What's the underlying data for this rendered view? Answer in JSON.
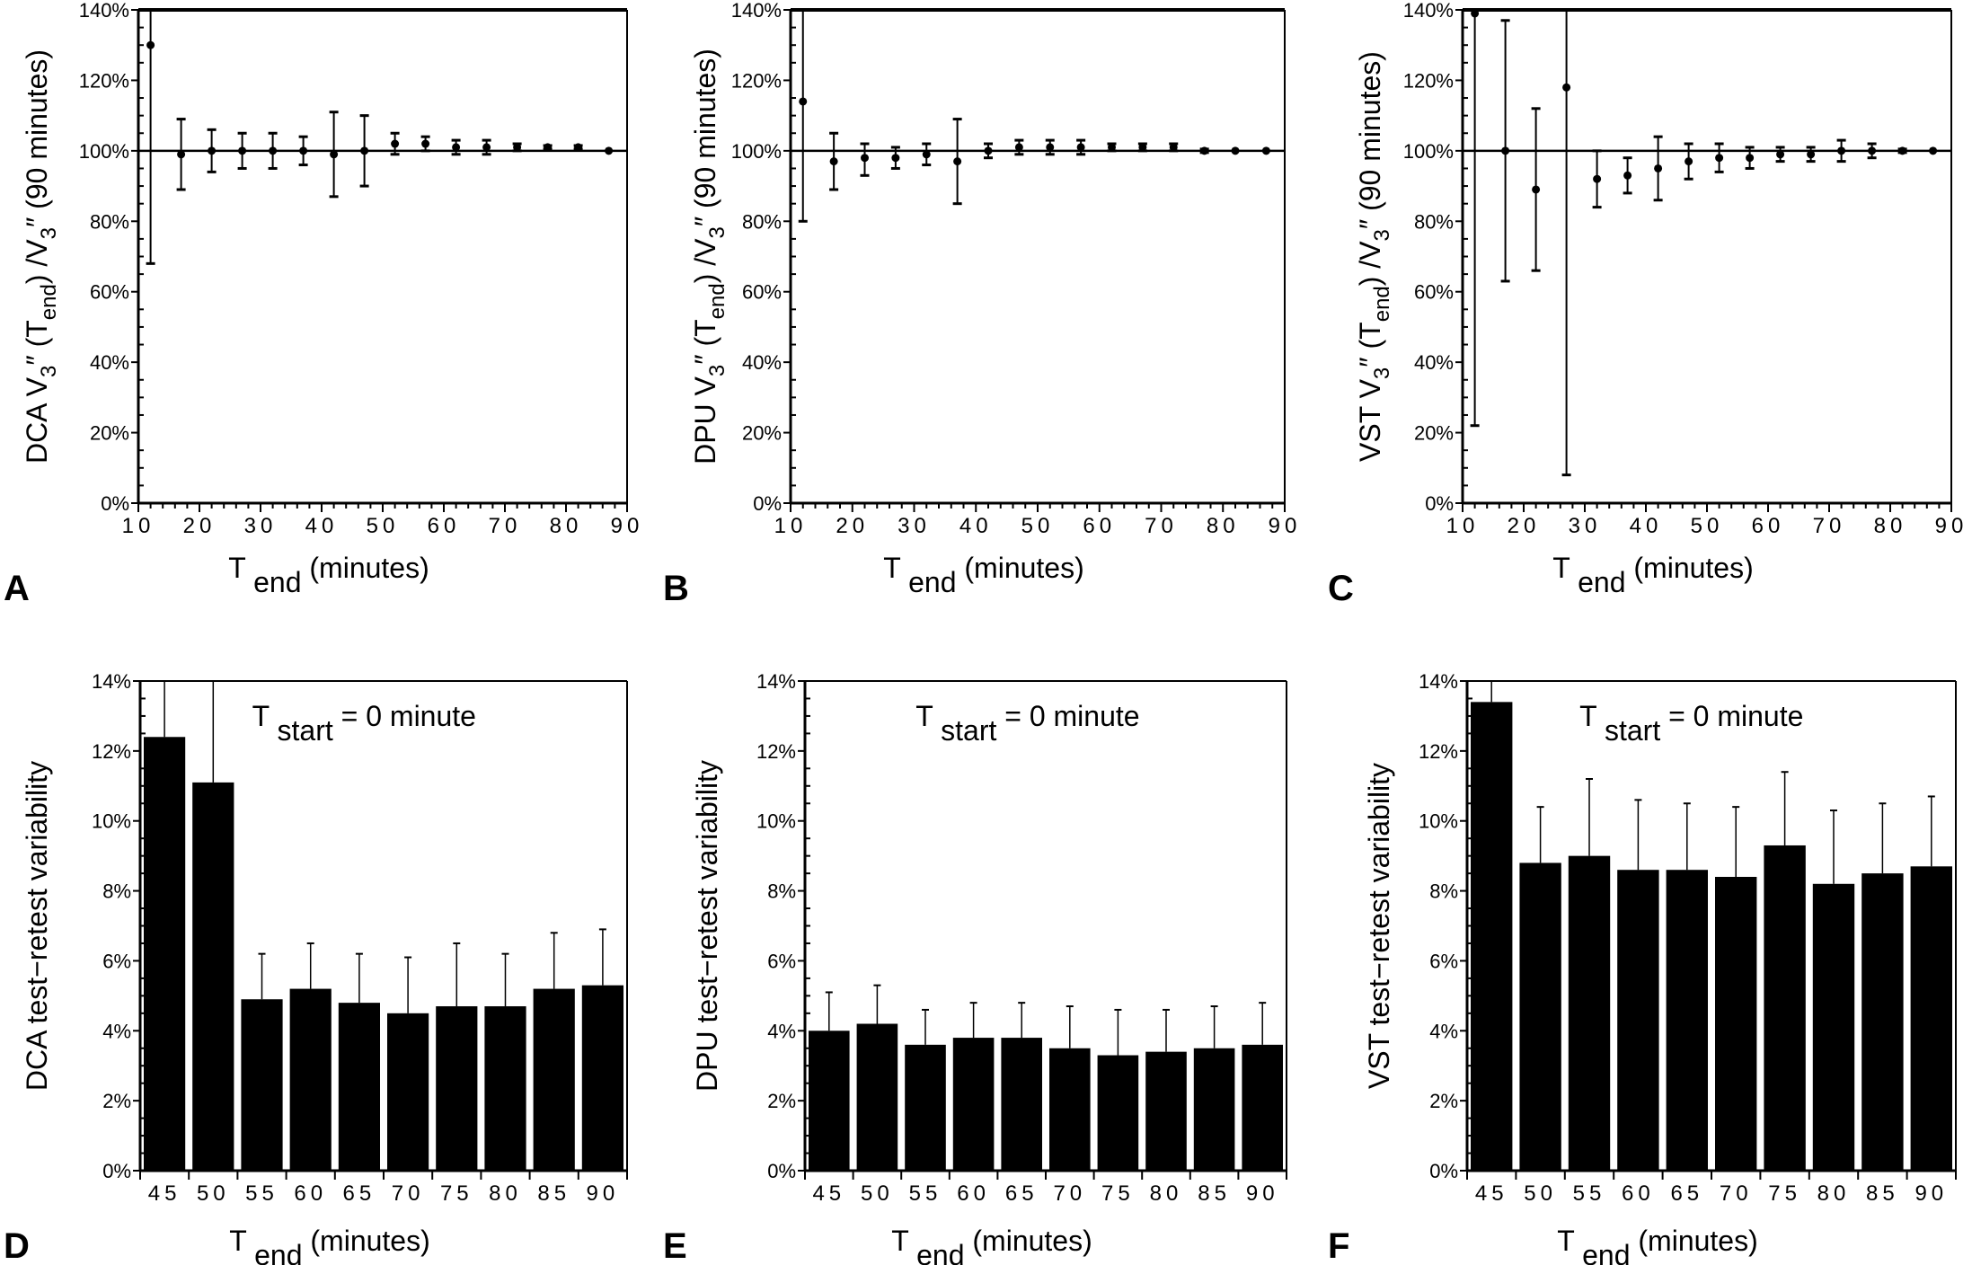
{
  "figure": {
    "panels": [
      "A",
      "B",
      "C",
      "D",
      "E",
      "F"
    ]
  },
  "chart_data": [
    {
      "panel": "A",
      "type": "scatter",
      "title": "",
      "ylabel": "DCA V3″ (T end) /V3″ (90 minutes)",
      "ylabel_parts": {
        "prefix": "DCA V",
        "sub1": "3",
        "mid1": "″ (T",
        "end": "end",
        "mid2": ") /V",
        "sub2": "3",
        "suffix": "″ (90 minutes)"
      },
      "xlabel": "T end (minutes)",
      "xlabel_parts": {
        "main": "T",
        "sub": "end",
        "unit": "(minutes)"
      },
      "xlim": [
        10,
        90
      ],
      "ylim": [
        0,
        140
      ],
      "xticks": [
        "10",
        "20",
        "30",
        "40",
        "50",
        "60",
        "70",
        "80",
        "90"
      ],
      "yticks": [
        "0%",
        "20%",
        "40%",
        "60%",
        "80%",
        "100%",
        "120%",
        "140%"
      ],
      "reference_line": 100,
      "grid": false,
      "points": [
        {
          "x": 12,
          "y": 130,
          "lo": 68,
          "hi": 140
        },
        {
          "x": 17,
          "y": 99,
          "lo": 89,
          "hi": 109
        },
        {
          "x": 22,
          "y": 100,
          "lo": 94,
          "hi": 106
        },
        {
          "x": 27,
          "y": 100,
          "lo": 95,
          "hi": 105
        },
        {
          "x": 32,
          "y": 100,
          "lo": 95,
          "hi": 105
        },
        {
          "x": 37,
          "y": 100,
          "lo": 96,
          "hi": 104
        },
        {
          "x": 42,
          "y": 99,
          "lo": 87,
          "hi": 111
        },
        {
          "x": 47,
          "y": 100,
          "lo": 90,
          "hi": 110
        },
        {
          "x": 52,
          "y": 102,
          "lo": 99,
          "hi": 105
        },
        {
          "x": 57,
          "y": 102,
          "lo": 100,
          "hi": 104
        },
        {
          "x": 62,
          "y": 101,
          "lo": 99,
          "hi": 103
        },
        {
          "x": 67,
          "y": 101,
          "lo": 99,
          "hi": 103
        },
        {
          "x": 72,
          "y": 101,
          "lo": 100,
          "hi": 102
        },
        {
          "x": 77,
          "y": 101,
          "lo": 100.5,
          "hi": 101.5
        },
        {
          "x": 82,
          "y": 101,
          "lo": 100.5,
          "hi": 101.5
        },
        {
          "x": 87,
          "y": 100,
          "lo": 100,
          "hi": 100
        }
      ]
    },
    {
      "panel": "B",
      "type": "scatter",
      "title": "",
      "ylabel": "DPU V3″ (T end) /V3″ (90 minutes)",
      "ylabel_parts": {
        "prefix": "DPU V",
        "sub1": "3",
        "mid1": "″ (T",
        "end": "end",
        "mid2": ") /V",
        "sub2": "3",
        "suffix": "″ (90 minutes)"
      },
      "xlabel": "T end (minutes)",
      "xlabel_parts": {
        "main": "T",
        "sub": "end",
        "unit": "(minutes)"
      },
      "xlim": [
        10,
        90
      ],
      "ylim": [
        0,
        140
      ],
      "xticks": [
        "10",
        "20",
        "30",
        "40",
        "50",
        "60",
        "70",
        "80",
        "90"
      ],
      "yticks": [
        "0%",
        "20%",
        "40%",
        "60%",
        "80%",
        "100%",
        "120%",
        "140%"
      ],
      "reference_line": 100,
      "grid": false,
      "points": [
        {
          "x": 12,
          "y": 114,
          "lo": 80,
          "hi": 140
        },
        {
          "x": 17,
          "y": 97,
          "lo": 89,
          "hi": 105
        },
        {
          "x": 22,
          "y": 98,
          "lo": 93,
          "hi": 102
        },
        {
          "x": 27,
          "y": 98,
          "lo": 95,
          "hi": 101
        },
        {
          "x": 32,
          "y": 99,
          "lo": 96,
          "hi": 102
        },
        {
          "x": 37,
          "y": 97,
          "lo": 85,
          "hi": 109
        },
        {
          "x": 42,
          "y": 100,
          "lo": 98,
          "hi": 102
        },
        {
          "x": 47,
          "y": 101,
          "lo": 99,
          "hi": 103
        },
        {
          "x": 52,
          "y": 101,
          "lo": 99,
          "hi": 103
        },
        {
          "x": 57,
          "y": 101,
          "lo": 99,
          "hi": 103
        },
        {
          "x": 62,
          "y": 101,
          "lo": 100,
          "hi": 102
        },
        {
          "x": 67,
          "y": 101,
          "lo": 100,
          "hi": 102
        },
        {
          "x": 72,
          "y": 101,
          "lo": 100,
          "hi": 102
        },
        {
          "x": 77,
          "y": 100,
          "lo": 99.5,
          "hi": 100.5
        },
        {
          "x": 82,
          "y": 100,
          "lo": 100,
          "hi": 100
        },
        {
          "x": 87,
          "y": 100,
          "lo": 100,
          "hi": 100
        }
      ]
    },
    {
      "panel": "C",
      "type": "scatter",
      "title": "",
      "ylabel": "VST V3″ (T end) /V3″ (90 minutes)",
      "ylabel_parts": {
        "prefix": "VST V",
        "sub1": "3",
        "mid1": "″ (T",
        "end": "end",
        "mid2": ") /V",
        "sub2": "3",
        "suffix": "″ (90 minutes)"
      },
      "xlabel": "T end (minutes)",
      "xlabel_parts": {
        "main": "T",
        "sub": "end",
        "unit": "(minutes)"
      },
      "xlim": [
        10,
        90
      ],
      "ylim": [
        0,
        140
      ],
      "xticks": [
        "10",
        "20",
        "30",
        "40",
        "50",
        "60",
        "70",
        "80",
        "90"
      ],
      "yticks": [
        "0%",
        "20%",
        "40%",
        "60%",
        "80%",
        "100%",
        "120%",
        "140%"
      ],
      "reference_line": 100,
      "grid": false,
      "points": [
        {
          "x": 12,
          "y": 139,
          "lo": 22,
          "hi": 140
        },
        {
          "x": 17,
          "y": 100,
          "lo": 63,
          "hi": 137
        },
        {
          "x": 22,
          "y": 89,
          "lo": 66,
          "hi": 112
        },
        {
          "x": 27,
          "y": 118,
          "lo": 8,
          "hi": 140
        },
        {
          "x": 32,
          "y": 92,
          "lo": 84,
          "hi": 100
        },
        {
          "x": 37,
          "y": 93,
          "lo": 88,
          "hi": 98
        },
        {
          "x": 42,
          "y": 95,
          "lo": 86,
          "hi": 104
        },
        {
          "x": 47,
          "y": 97,
          "lo": 92,
          "hi": 102
        },
        {
          "x": 52,
          "y": 98,
          "lo": 94,
          "hi": 102
        },
        {
          "x": 57,
          "y": 98,
          "lo": 95,
          "hi": 101
        },
        {
          "x": 62,
          "y": 99,
          "lo": 97,
          "hi": 101
        },
        {
          "x": 67,
          "y": 99,
          "lo": 97,
          "hi": 101
        },
        {
          "x": 72,
          "y": 100,
          "lo": 97,
          "hi": 103
        },
        {
          "x": 77,
          "y": 100,
          "lo": 98,
          "hi": 102
        },
        {
          "x": 82,
          "y": 100,
          "lo": 99.5,
          "hi": 100.5
        },
        {
          "x": 87,
          "y": 100,
          "lo": 100,
          "hi": 100
        }
      ]
    },
    {
      "panel": "D",
      "type": "bar",
      "title": "",
      "annotation": {
        "main": "T",
        "sub": "start",
        "rest": "= 0 minute"
      },
      "ylabel": "DCA test−retest variability",
      "xlabel": "T end (minutes)",
      "xlabel_parts": {
        "main": "T",
        "sub": "end",
        "unit": "(minutes)"
      },
      "ylim": [
        0,
        14
      ],
      "yticks": [
        "0%",
        "2%",
        "4%",
        "6%",
        "8%",
        "10%",
        "12%",
        "14%"
      ],
      "categories": [
        "45",
        "50",
        "55",
        "60",
        "65",
        "70",
        "75",
        "80",
        "85",
        "90"
      ],
      "values": [
        12.4,
        11.1,
        4.9,
        5.2,
        4.8,
        4.5,
        4.7,
        4.7,
        5.2,
        5.3
      ],
      "error_upper": [
        14,
        14,
        6.2,
        6.5,
        6.2,
        6.1,
        6.5,
        6.2,
        6.8,
        6.9
      ],
      "grid": false
    },
    {
      "panel": "E",
      "type": "bar",
      "title": "",
      "annotation": {
        "main": "T",
        "sub": "start",
        "rest": "= 0 minute"
      },
      "ylabel": "DPU test−retest variability",
      "xlabel": "T end (minutes)",
      "xlabel_parts": {
        "main": "T",
        "sub": "end",
        "unit": "(minutes)"
      },
      "ylim": [
        0,
        14
      ],
      "yticks": [
        "0%",
        "2%",
        "4%",
        "6%",
        "8%",
        "10%",
        "12%",
        "14%"
      ],
      "categories": [
        "45",
        "50",
        "55",
        "60",
        "65",
        "70",
        "75",
        "80",
        "85",
        "90"
      ],
      "values": [
        4.0,
        4.2,
        3.6,
        3.8,
        3.8,
        3.5,
        3.3,
        3.4,
        3.5,
        3.6
      ],
      "error_upper": [
        5.1,
        5.3,
        4.6,
        4.8,
        4.8,
        4.7,
        4.6,
        4.6,
        4.7,
        4.8
      ],
      "grid": false
    },
    {
      "panel": "F",
      "type": "bar",
      "title": "",
      "annotation": {
        "main": "T",
        "sub": "start",
        "rest": "= 0 minute"
      },
      "ylabel": "VST test−retest variability",
      "xlabel": "T end (minutes)",
      "xlabel_parts": {
        "main": "T",
        "sub": "end",
        "unit": "(minutes)"
      },
      "ylim": [
        0,
        14
      ],
      "yticks": [
        "0%",
        "2%",
        "4%",
        "6%",
        "8%",
        "10%",
        "12%",
        "14%"
      ],
      "categories": [
        "45",
        "50",
        "55",
        "60",
        "65",
        "70",
        "75",
        "80",
        "85",
        "90"
      ],
      "values": [
        13.4,
        8.8,
        9.0,
        8.6,
        8.6,
        8.4,
        9.3,
        8.2,
        8.5,
        8.7
      ],
      "error_upper": [
        14,
        10.4,
        11.2,
        10.6,
        10.5,
        10.4,
        11.4,
        10.3,
        10.5,
        10.7
      ],
      "grid": false
    }
  ]
}
